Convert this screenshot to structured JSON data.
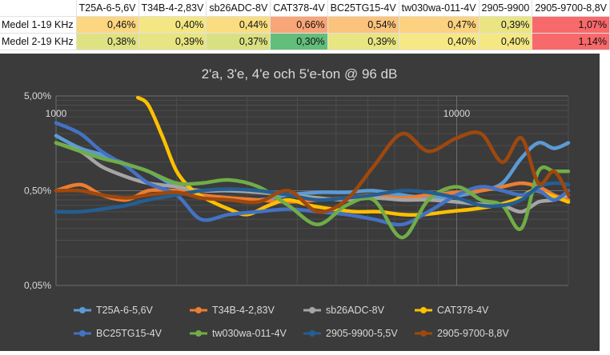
{
  "table": {
    "headers": [
      "",
      "T25A-6-5,6V",
      "T34B-4-2,83V",
      "sb26ADC-8V",
      "CAT378-4V",
      "BC25TG15-4V",
      "tw030wa-011-4V",
      "2905-9900",
      "2905-9700-8,8V"
    ],
    "rows": [
      {
        "label": "Medel 1-19 KHz",
        "values": [
          "0,46%",
          "0,40%",
          "0,44%",
          "0,66%",
          "0,54%",
          "0,47%",
          "0,39%",
          "1,07%"
        ],
        "colors": [
          "#fcd680",
          "#f4e783",
          "#f9dd80",
          "#f8a577",
          "#fbc37c",
          "#fcd17f",
          "#eae582",
          "#f8696b"
        ]
      },
      {
        "label": "Medel 2-19 KHz",
        "values": [
          "0,38%",
          "0,39%",
          "0,37%",
          "0,30%",
          "0,39%",
          "0,40%",
          "0,40%",
          "1,14%"
        ],
        "colors": [
          "#dfe283",
          "#e6e483",
          "#d9e082",
          "#63be7b",
          "#e8e583",
          "#f6e884",
          "#f5e884",
          "#f8696b"
        ]
      }
    ]
  },
  "chart_data": {
    "type": "line",
    "title": "2'a, 3'e, 4'e och 5'e-ton @ 96 dB",
    "xlabel": "",
    "ylabel": "",
    "x_scale": "log",
    "y_scale": "log",
    "xlim": [
      1000,
      19000
    ],
    "ylim": [
      0.05,
      5
    ],
    "x_tick_labels": [
      "1000",
      "10000"
    ],
    "y_tick_labels": [
      "5,00%",
      "0,50%",
      "0,05%"
    ],
    "grid": true,
    "legend_position": "bottom",
    "series": [
      {
        "name": "T25A-6-5,6V",
        "color": "#5b9bd5",
        "x": [
          1000,
          1150,
          1300,
          1500,
          1700,
          2000,
          2300,
          2700,
          3200,
          3800,
          4500,
          5300,
          6200,
          7300,
          8500,
          10000,
          11500,
          13000,
          14500,
          16000,
          17500,
          19000
        ],
        "y": [
          1.9,
          1.4,
          1.2,
          0.95,
          0.8,
          0.55,
          0.45,
          0.42,
          0.4,
          0.45,
          0.48,
          0.48,
          0.5,
          0.45,
          0.42,
          0.44,
          0.5,
          0.6,
          1.1,
          1.6,
          1.4,
          1.6
        ]
      },
      {
        "name": "T34B-4-2,83V",
        "color": "#ed7d31",
        "x": [
          1000,
          1150,
          1300,
          1500,
          1700,
          2000,
          2300,
          2700,
          3200,
          3800,
          4500,
          5300,
          6200,
          7300,
          8500,
          10000,
          11500,
          13000,
          14500,
          16000,
          17500,
          19000
        ],
        "y": [
          0.5,
          0.58,
          0.45,
          0.4,
          0.5,
          0.5,
          0.45,
          0.42,
          0.4,
          0.38,
          0.4,
          0.42,
          0.45,
          0.42,
          0.45,
          0.48,
          0.5,
          0.55,
          0.6,
          0.55,
          0.45,
          0.4
        ]
      },
      {
        "name": "sb26ADC-8V",
        "color": "#a5a5a5",
        "x": [
          1000,
          1150,
          1300,
          1500,
          1700,
          2000,
          2300,
          2700,
          3200,
          3800,
          4500,
          5300,
          6200,
          7300,
          8500,
          10000,
          11500,
          13000,
          14500,
          16000,
          17500,
          19000
        ],
        "y": [
          1.6,
          1.3,
          0.9,
          0.7,
          0.6,
          0.55,
          0.5,
          0.5,
          0.48,
          0.45,
          0.42,
          0.4,
          0.42,
          0.4,
          0.4,
          0.38,
          0.36,
          0.35,
          0.3,
          0.38,
          0.4,
          0.45
        ]
      },
      {
        "name": "CAT378-4V",
        "color": "#ffc000",
        "x": [
          1600,
          1700,
          1850,
          2000,
          2200,
          2400,
          2700,
          3000,
          3400,
          3800,
          4300,
          4900,
          5600,
          6400,
          7300,
          8300,
          9500,
          11000,
          12500,
          14000,
          15500,
          17000,
          19000
        ],
        "y": [
          4.8,
          4.0,
          1.8,
          0.8,
          0.5,
          0.4,
          0.32,
          0.28,
          0.35,
          0.4,
          0.35,
          0.32,
          0.3,
          0.3,
          0.28,
          0.28,
          0.3,
          0.32,
          0.35,
          0.4,
          0.5,
          0.45,
          0.38
        ]
      },
      {
        "name": "BC25TG15-4V",
        "color": "#4472c4",
        "x": [
          1000,
          1150,
          1300,
          1500,
          1700,
          2000,
          2300,
          2700,
          3200,
          3800,
          4500,
          5300,
          6200,
          7300,
          8500,
          10000,
          11500,
          13000,
          14500,
          16000,
          17500,
          19000
        ],
        "y": [
          2.6,
          2.0,
          1.3,
          0.9,
          0.6,
          0.45,
          0.25,
          0.28,
          0.3,
          0.32,
          0.3,
          0.28,
          0.25,
          0.22,
          0.3,
          0.45,
          0.55,
          0.5,
          0.45,
          0.5,
          0.4,
          0.5
        ]
      },
      {
        "name": "tw030wa-011-4V",
        "color": "#70ad47",
        "x": [
          1000,
          1150,
          1300,
          1500,
          1700,
          2000,
          2300,
          2700,
          3200,
          3800,
          4500,
          5300,
          6200,
          7300,
          8500,
          10000,
          11500,
          13000,
          14500,
          16000,
          17500,
          19000
        ],
        "y": [
          1.6,
          1.3,
          1.1,
          0.95,
          0.8,
          0.6,
          0.6,
          0.65,
          0.55,
          0.35,
          0.22,
          0.35,
          0.4,
          0.16,
          0.4,
          0.55,
          0.4,
          0.35,
          0.2,
          0.8,
          0.8,
          0.8
        ]
      },
      {
        "name": "2905-9900-5,5V",
        "color": "#255e91",
        "x": [
          1000,
          1150,
          1300,
          1500,
          1700,
          2000,
          2300,
          2700,
          3200,
          3800,
          4500,
          5300,
          6200,
          7300,
          8500,
          10000,
          11500,
          13000,
          14500,
          16000,
          17500,
          19000
        ],
        "y": [
          0.3,
          0.3,
          0.32,
          0.35,
          0.4,
          0.45,
          0.5,
          0.52,
          0.5,
          0.45,
          0.4,
          0.42,
          0.45,
          0.5,
          0.48,
          0.42,
          0.35,
          0.35,
          0.4,
          0.55,
          0.6,
          0.58
        ]
      },
      {
        "name": "2905-9700-8,8V",
        "color": "#9e480e",
        "x": [
          1000,
          1150,
          1300,
          1500,
          1700,
          2000,
          2300,
          2700,
          3200,
          3800,
          4500,
          5300,
          6200,
          7300,
          8500,
          10000,
          11500,
          13000,
          14500,
          16000,
          17500,
          19000
        ],
        "y": [
          0.5,
          0.5,
          0.45,
          0.42,
          0.45,
          0.48,
          0.42,
          0.4,
          0.38,
          0.5,
          0.3,
          0.4,
          0.9,
          2.0,
          1.3,
          1.8,
          2.0,
          1.0,
          1.8,
          0.6,
          0.8,
          0.45
        ]
      }
    ]
  }
}
